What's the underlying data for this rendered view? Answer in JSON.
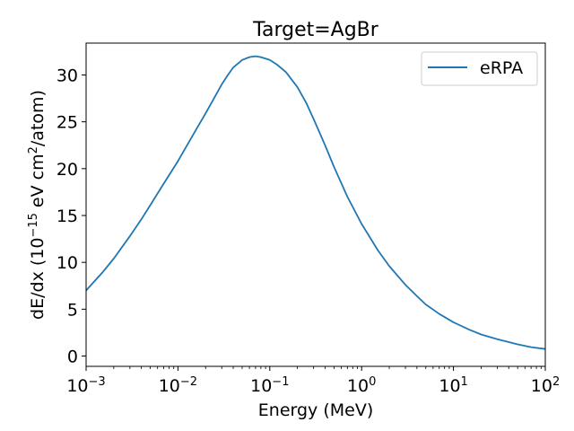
{
  "chart_data": {
    "type": "line",
    "title": "Target=AgBr",
    "xlabel": "Energy (MeV)",
    "ylabel": {
      "pre": "dE/dx (10",
      "exp": "−15",
      "mid": " eV cm",
      "sq": "2",
      "post": "/atom)"
    },
    "xscale": "log",
    "xlim": [
      0.001,
      100
    ],
    "ylim": [
      -1.1,
      33.4
    ],
    "x_ticks": [
      {
        "base": "10",
        "exp": "−3",
        "value": 0.001
      },
      {
        "base": "10",
        "exp": "−2",
        "value": 0.01
      },
      {
        "base": "10",
        "exp": "−1",
        "value": 0.1
      },
      {
        "base": "10",
        "exp": "0",
        "value": 1
      },
      {
        "base": "10",
        "exp": "1",
        "value": 10
      },
      {
        "base": "10",
        "exp": "2",
        "value": 100
      }
    ],
    "y_ticks": [
      "0",
      "5",
      "10",
      "15",
      "20",
      "25",
      "30"
    ],
    "grid": false,
    "legend_position": "top-right",
    "series": [
      {
        "name": "eRPA",
        "color": "#1f77b4",
        "x": [
          0.001,
          0.0015,
          0.002,
          0.003,
          0.004,
          0.005,
          0.007,
          0.01,
          0.015,
          0.02,
          0.025,
          0.03,
          0.035,
          0.04,
          0.05,
          0.06,
          0.07,
          0.08,
          0.1,
          0.12,
          0.15,
          0.2,
          0.25,
          0.3,
          0.4,
          0.5,
          0.7,
          1.0,
          1.5,
          2.0,
          3.0,
          4.0,
          5.0,
          7.0,
          10.0,
          15.0,
          20.0,
          30.0,
          50.0,
          70.0,
          100.0
        ],
        "y": [
          7.0,
          8.9,
          10.4,
          12.8,
          14.6,
          16.1,
          18.4,
          20.8,
          23.8,
          25.9,
          27.6,
          29.0,
          30.0,
          30.8,
          31.6,
          31.9,
          32.0,
          31.9,
          31.6,
          31.1,
          30.3,
          28.7,
          27.0,
          25.3,
          22.5,
          20.2,
          17.0,
          14.1,
          11.3,
          9.6,
          7.6,
          6.4,
          5.5,
          4.5,
          3.6,
          2.8,
          2.3,
          1.8,
          1.25,
          0.95,
          0.75
        ]
      }
    ]
  }
}
